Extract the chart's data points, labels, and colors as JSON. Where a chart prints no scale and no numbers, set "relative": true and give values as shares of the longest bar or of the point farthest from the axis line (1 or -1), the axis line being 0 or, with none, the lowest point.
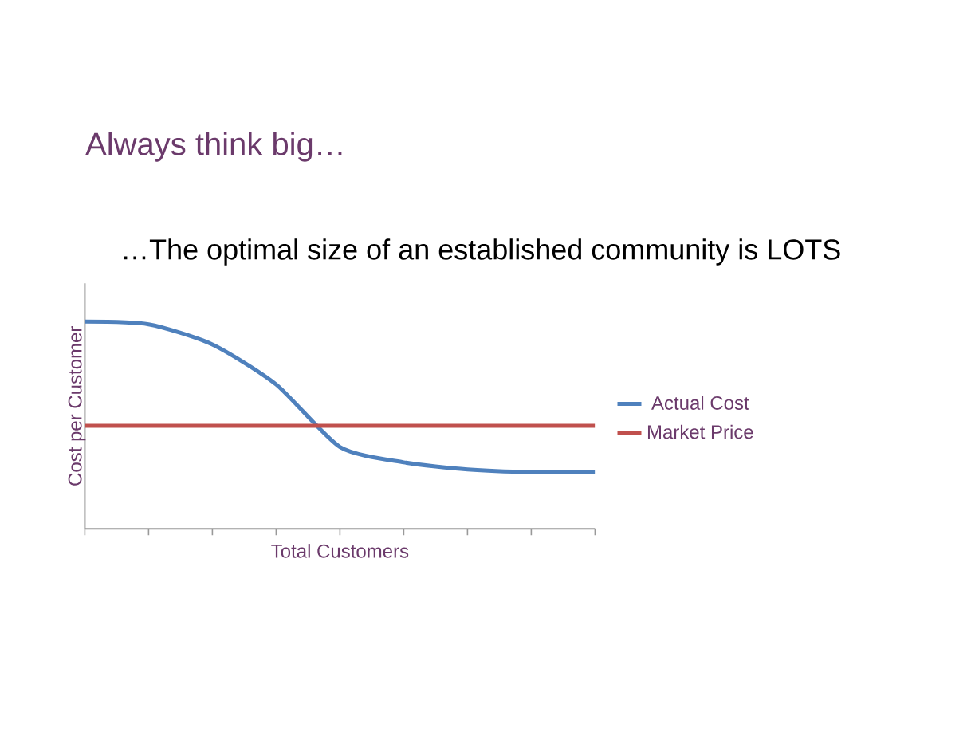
{
  "chart_data": {
    "type": "line",
    "title": "Always think big…",
    "subtitle": "…The optimal size of an established community is LOTS",
    "xlabel": "Total Customers",
    "ylabel": "Cost per Customer",
    "relative": true,
    "categories": [
      null,
      null,
      null,
      null,
      null,
      null,
      null,
      null,
      null
    ],
    "series": [
      {
        "name": "Actual Cost",
        "color": "#4f81bd",
        "values": [
          1,
          0.987,
          0.89,
          0.697,
          0.395,
          0.321,
          0.287,
          0.274,
          0.274
        ]
      },
      {
        "name": "Market Price",
        "color": "#c0504d",
        "values": [
          0.497,
          0.497,
          0.497,
          0.497,
          0.497,
          0.497,
          0.497,
          0.497,
          0.497
        ]
      }
    ],
    "legend": "right",
    "marker": "none",
    "line_style": "solid",
    "grid": false
  }
}
